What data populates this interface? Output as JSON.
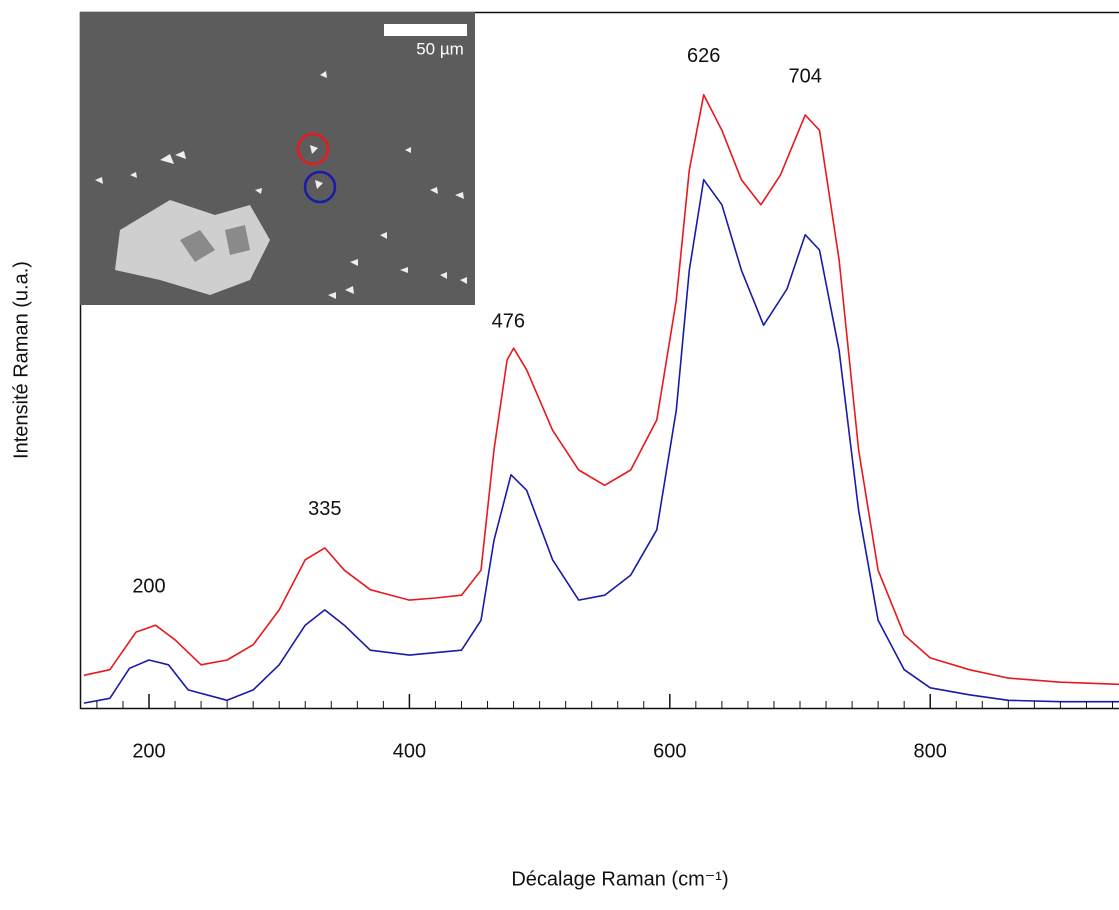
{
  "chart_data": {
    "type": "line",
    "xlabel": "Décalage Raman (cm⁻¹)",
    "ylabel": "Intensité Raman (u.a.)",
    "xlim": [
      147,
      945
    ],
    "ylim": [
      0,
      100
    ],
    "xticks": [
      200,
      400,
      600,
      800
    ],
    "xminorticks": [
      160,
      180,
      220,
      240,
      260,
      280,
      300,
      320,
      340,
      360,
      380,
      420,
      440,
      460,
      480,
      500,
      520,
      540,
      560,
      580,
      620,
      640,
      660,
      680,
      700,
      720,
      740,
      760,
      780,
      820,
      840,
      860,
      880,
      900,
      920,
      940
    ],
    "series": [
      {
        "color": "#e8191c",
        "x": [
          150,
          170,
          190,
          205,
          220,
          240,
          260,
          280,
          300,
          320,
          335,
          350,
          370,
          400,
          420,
          440,
          455,
          465,
          475,
          480,
          490,
          510,
          530,
          550,
          570,
          590,
          605,
          615,
          626,
          640,
          655,
          670,
          685,
          704,
          715,
          730,
          745,
          760,
          780,
          800,
          830,
          860,
          900,
          945
        ],
        "values": [
          4.7,
          5.5,
          10.9,
          11.9,
          9.8,
          6.2,
          6.9,
          9.1,
          14.1,
          21.3,
          23,
          19.8,
          17,
          15.5,
          15.8,
          16.2,
          19.8,
          37.1,
          50,
          51.7,
          48.6,
          39.9,
          34.2,
          32,
          34.2,
          41.4,
          58.6,
          77.3,
          88.1,
          83,
          75.9,
          72.3,
          76.6,
          85.2,
          83,
          64.4,
          37.1,
          19.8,
          10.5,
          7.2,
          5.5,
          4.3,
          3.7,
          3.4
        ]
      },
      {
        "color": "#1a1aa8",
        "x": [
          150,
          170,
          185,
          200,
          215,
          230,
          260,
          280,
          300,
          320,
          335,
          350,
          370,
          400,
          440,
          455,
          465,
          478,
          490,
          510,
          530,
          550,
          570,
          590,
          605,
          615,
          626,
          640,
          655,
          672,
          690,
          704,
          715,
          730,
          745,
          760,
          780,
          800,
          830,
          860,
          900,
          945
        ],
        "values": [
          0.7,
          1.4,
          5.7,
          6.9,
          6.2,
          2.6,
          1.1,
          2.6,
          6.2,
          11.9,
          14.1,
          11.9,
          8.3,
          7.6,
          8.3,
          12.6,
          24.1,
          33.5,
          31.3,
          21.3,
          15.5,
          16.2,
          19.1,
          25.6,
          42.8,
          62.9,
          75.9,
          72.3,
          62.9,
          55,
          60.2,
          68,
          65.8,
          51.4,
          28.4,
          12.6,
          5.5,
          2.9,
          1.9,
          1.1,
          0.9,
          0.9
        ]
      }
    ],
    "annotations": [
      {
        "text": "200",
        "x": 200
      },
      {
        "text": "335",
        "x": 335
      },
      {
        "text": "476",
        "x": 476
      },
      {
        "text": "626",
        "x": 626
      },
      {
        "text": "704",
        "x": 704
      }
    ],
    "inset_scale_label": "50 µm"
  }
}
